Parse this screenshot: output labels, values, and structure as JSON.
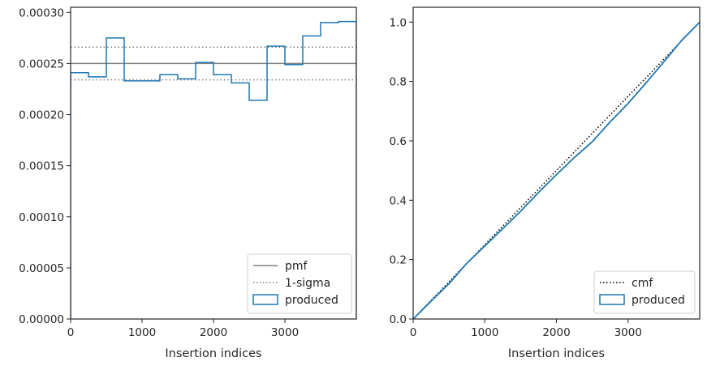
{
  "chart_data": [
    {
      "type": "step",
      "xlabel": "Insertion indices",
      "ylabel": "",
      "xlim": [
        0,
        4000
      ],
      "ylim": [
        0,
        0.000305
      ],
      "xticks": [
        "0",
        "1000",
        "2000",
        "3000"
      ],
      "yticks": [
        "0.00000",
        "0.00005",
        "0.00010",
        "0.00015",
        "0.00020",
        "0.00025",
        "0.00030"
      ],
      "grid": false,
      "legend_position": "bottom-right",
      "series": [
        {
          "name": "pmf",
          "style": "solid",
          "color": "#808080",
          "y": 0.00025
        },
        {
          "name": "1-sigma",
          "style": "dotted",
          "color": "#808080",
          "y_values": [
            0.000234,
            0.000266
          ]
        },
        {
          "name": "produced",
          "style": "step",
          "color": "#1f77b4",
          "bin_edges": [
            0,
            250,
            500,
            750,
            1000,
            1250,
            1500,
            1750,
            2000,
            2250,
            2500,
            2750,
            3000,
            3250,
            3500,
            3750,
            4000
          ],
          "values": [
            0.000241,
            0.000237,
            0.000275,
            0.000233,
            0.000233,
            0.000239,
            0.000235,
            0.000251,
            0.000239,
            0.000231,
            0.000214,
            0.000267,
            0.000249,
            0.000277,
            0.00029,
            0.000291
          ]
        }
      ]
    },
    {
      "type": "line",
      "xlabel": "Insertion indices",
      "ylabel": "",
      "xlim": [
        0,
        4000
      ],
      "ylim": [
        0,
        1.05
      ],
      "xticks": [
        "0",
        "1000",
        "2000",
        "3000"
      ],
      "yticks": [
        "0.0",
        "0.2",
        "0.4",
        "0.6",
        "0.8",
        "1.0"
      ],
      "grid": false,
      "legend_position": "bottom-right",
      "series": [
        {
          "name": "cmf",
          "style": "dotted",
          "color": "#000000",
          "x": [
            0,
            4000
          ],
          "y": [
            0,
            1.0
          ]
        },
        {
          "name": "produced",
          "style": "solid",
          "color": "#1f77b4",
          "x": [
            0,
            250,
            500,
            750,
            1000,
            1250,
            1500,
            1750,
            2000,
            2250,
            2500,
            2750,
            3000,
            3250,
            3500,
            3750,
            4000
          ],
          "y": [
            0,
            0.06,
            0.119,
            0.188,
            0.246,
            0.304,
            0.363,
            0.426,
            0.486,
            0.544,
            0.597,
            0.664,
            0.726,
            0.795,
            0.866,
            0.939,
            1.0
          ]
        }
      ]
    }
  ]
}
